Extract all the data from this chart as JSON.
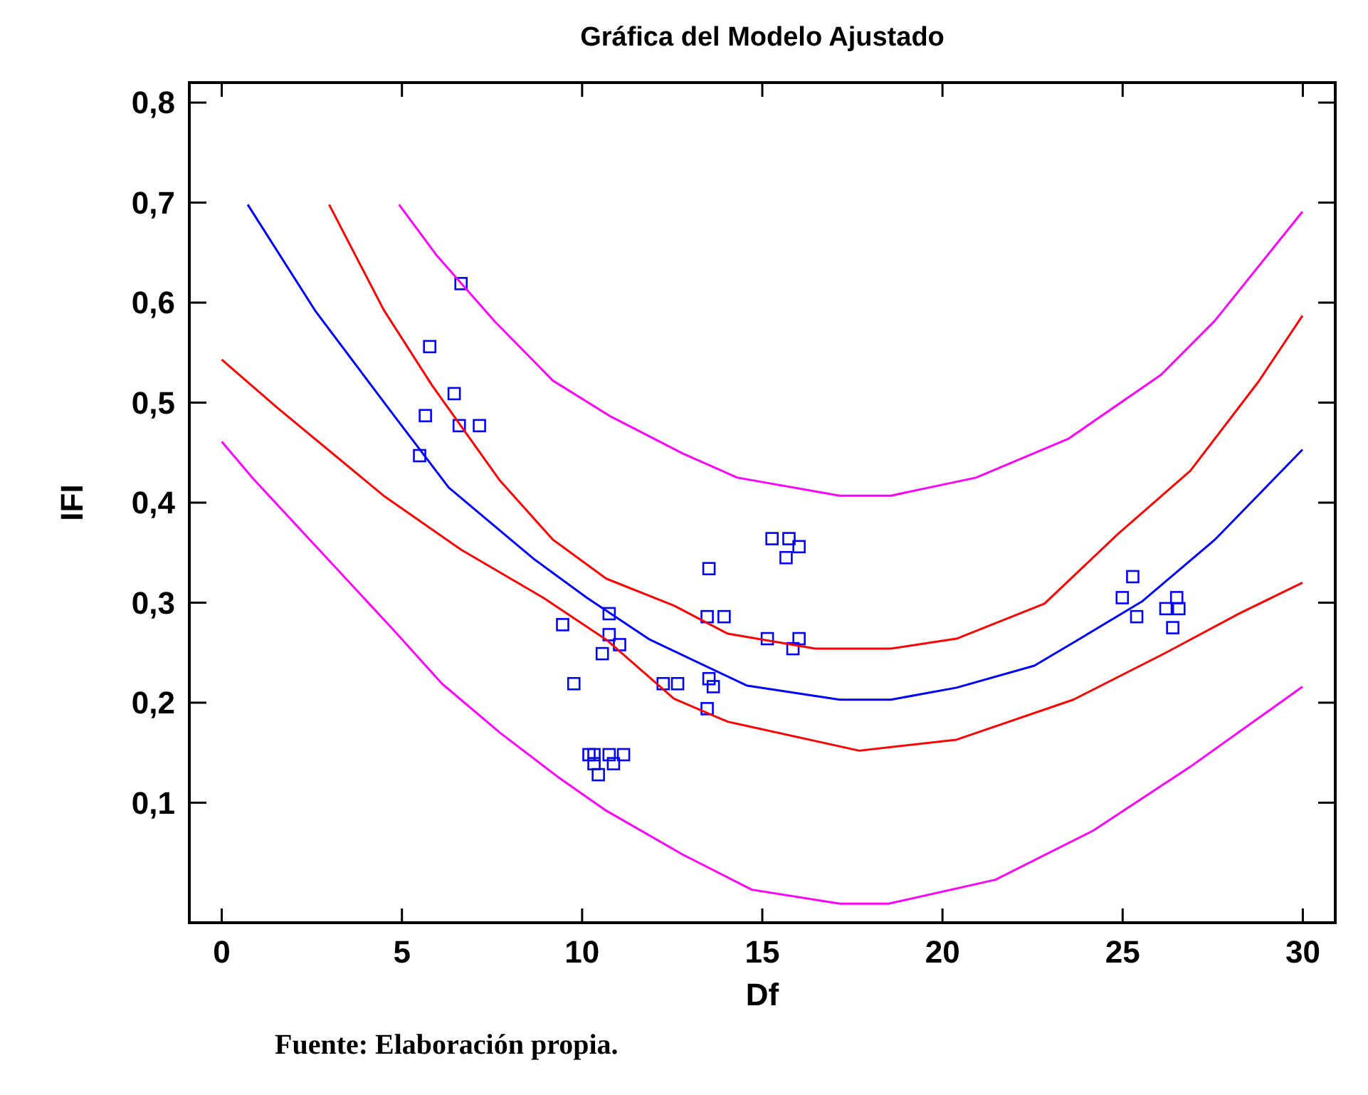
{
  "chart_data": {
    "type": "line",
    "title": "Gráfica del Modelo Ajustado",
    "xlabel": "Df",
    "ylabel": "IFI",
    "annotations": [
      "Fuente: Elaboración propia."
    ],
    "xlim": [
      -0.9,
      30.9
    ],
    "xticks": [
      0,
      5,
      10,
      15,
      20,
      25,
      30
    ],
    "ylim": [
      -0.02,
      0.82
    ],
    "yticks": [
      {
        "value": 0.1,
        "label": "0,1"
      },
      {
        "value": 0.2,
        "label": "0,2"
      },
      {
        "value": 0.3,
        "label": "0,3"
      },
      {
        "value": 0.4,
        "label": "0,4"
      },
      {
        "value": 0.5,
        "label": "0,5"
      },
      {
        "value": 0.6,
        "label": "0,6"
      },
      {
        "value": 0.7,
        "label": "0,7"
      },
      {
        "value": 0.8,
        "label": "0,8"
      }
    ],
    "grid": false,
    "series": [
      {
        "type": "scatter",
        "marker": "square",
        "color": "#0000ff",
        "x": [
          6.64,
          5.77,
          6.45,
          5.65,
          6.59,
          7.15,
          5.49,
          9.46,
          10.75,
          10.75,
          11.04,
          10.56,
          9.77,
          12.25,
          12.65,
          10.19,
          10.33,
          10.75,
          11.15,
          10.33,
          10.87,
          10.45,
          15.27,
          15.74,
          16.02,
          15.66,
          13.52,
          13.47,
          13.94,
          15.14,
          16.02,
          15.85,
          13.52,
          13.64,
          13.47,
          25.28,
          24.99,
          25.39,
          26.5,
          26.2,
          26.56,
          26.39
        ],
        "values": [
          0.619,
          0.556,
          0.509,
          0.487,
          0.477,
          0.477,
          0.447,
          0.278,
          0.289,
          0.268,
          0.258,
          0.249,
          0.219,
          0.219,
          0.219,
          0.148,
          0.148,
          0.148,
          0.148,
          0.139,
          0.139,
          0.128,
          0.364,
          0.364,
          0.356,
          0.345,
          0.334,
          0.286,
          0.286,
          0.264,
          0.264,
          0.254,
          0.224,
          0.216,
          0.194,
          0.326,
          0.305,
          0.286,
          0.305,
          0.294,
          0.294,
          0.275
        ]
      },
      {
        "marker": "none",
        "color": "#0000ff",
        "x": [
          0.72,
          2.61,
          4.76,
          6.3,
          8.65,
          10.13,
          11.88,
          14.58,
          17.15,
          18.57,
          20.39,
          22.55,
          23.91,
          25.53,
          27.56,
          29.99
        ],
        "values": [
          0.698,
          0.591,
          0.488,
          0.415,
          0.344,
          0.305,
          0.263,
          0.217,
          0.203,
          0.203,
          0.215,
          0.237,
          0.266,
          0.301,
          0.363,
          0.453
        ]
      },
      {
        "marker": "none",
        "color": "#ff0000",
        "x": [
          2.98,
          4.49,
          5.84,
          7.72,
          9.19,
          10.67,
          12.55,
          14.04,
          16.47,
          18.57,
          20.39,
          22.83,
          24.85,
          26.88,
          28.77,
          29.99
        ],
        "values": [
          0.698,
          0.593,
          0.517,
          0.422,
          0.363,
          0.324,
          0.297,
          0.269,
          0.254,
          0.254,
          0.264,
          0.299,
          0.368,
          0.432,
          0.521,
          0.587
        ]
      },
      {
        "marker": "none",
        "color": "#ff0000",
        "x": [
          0,
          1.54,
          4.49,
          6.64,
          8.92,
          10.67,
          12.55,
          14.04,
          17.69,
          20.39,
          23.63,
          26.2,
          28.23,
          29.99
        ],
        "values": [
          0.543,
          0.495,
          0.407,
          0.353,
          0.305,
          0.263,
          0.204,
          0.181,
          0.152,
          0.163,
          0.203,
          0.25,
          0.289,
          0.32
        ]
      },
      {
        "marker": "none",
        "color": "#ff00ff",
        "x": [
          4.92,
          5.97,
          7.58,
          9.19,
          10.8,
          12.8,
          14.31,
          17.15,
          18.57,
          20.93,
          23.5,
          26.07,
          27.56,
          29.99
        ],
        "values": [
          0.698,
          0.647,
          0.581,
          0.522,
          0.486,
          0.449,
          0.425,
          0.407,
          0.407,
          0.425,
          0.464,
          0.528,
          0.582,
          0.691
        ]
      },
      {
        "marker": "none",
        "color": "#ff00ff",
        "x": [
          0,
          0.87,
          2.75,
          4.76,
          6.11,
          7.72,
          9.32,
          10.67,
          12.8,
          14.71,
          17.15,
          18.5,
          21.47,
          24.18,
          26.88,
          29.99
        ],
        "values": [
          0.461,
          0.424,
          0.351,
          0.273,
          0.219,
          0.17,
          0.126,
          0.092,
          0.048,
          0.013,
          -0.001,
          -0.001,
          0.023,
          0.072,
          0.136,
          0.216
        ]
      }
    ]
  }
}
